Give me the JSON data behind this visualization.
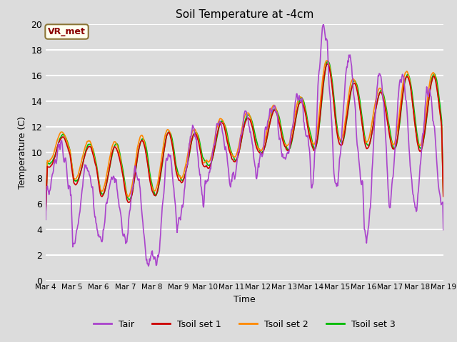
{
  "title": "Soil Temperature at -4cm",
  "xlabel": "Time",
  "ylabel": "Temperature (C)",
  "ylim": [
    0,
    20
  ],
  "xlim": [
    0,
    360
  ],
  "background_color": "#dcdcdc",
  "plot_bg_color": "#dcdcdc",
  "grid_color": "white",
  "annotation_text": "VR_met",
  "annotation_bg": "#fffff0",
  "annotation_border": "#8b7536",
  "annotation_text_color": "#8b0000",
  "colors": {
    "Tair": "#aa44cc",
    "Tsoil1": "#cc0000",
    "Tsoil2": "#ff8800",
    "Tsoil3": "#00bb00"
  },
  "legend_labels": [
    "Tair",
    "Tsoil set 1",
    "Tsoil set 2",
    "Tsoil set 3"
  ],
  "xtick_labels": [
    "Mar 4",
    "Mar 5",
    "Mar 6",
    "Mar 7",
    "Mar 8",
    "Mar 9",
    "Mar 10",
    "Mar 11",
    "Mar 12",
    "Mar 13",
    "Mar 14",
    "Mar 15",
    "Mar 16",
    "Mar 17",
    "Mar 18",
    "Mar 19"
  ],
  "n_points": 721
}
